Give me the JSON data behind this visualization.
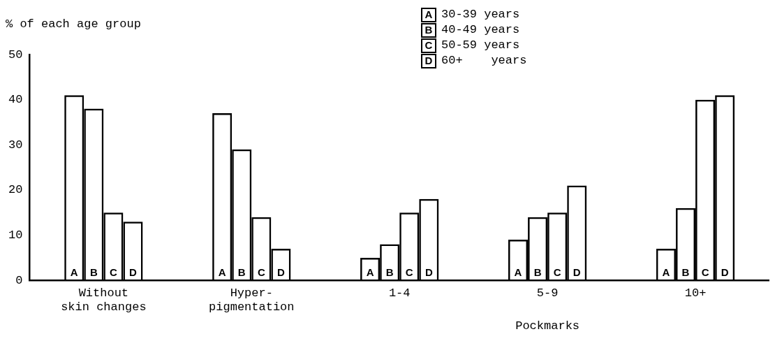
{
  "chart_data": {
    "type": "bar",
    "ylabel": "% of each age group",
    "xlabel": "Pockmarks",
    "categories": [
      "Without\nskin changes",
      "Hyper-\npigmentation",
      "1-4",
      "5-9",
      "10+"
    ],
    "series": [
      {
        "name": "30-39 years",
        "color": "#000000",
        "values": [
          41,
          37,
          5,
          9,
          7
        ],
        "value_labels": [
          "A",
          "A",
          "A",
          "A",
          "A"
        ]
      },
      {
        "name": "40-49 years",
        "color": "#000000",
        "values": [
          38,
          29,
          8,
          14,
          16
        ],
        "value_labels": [
          "B",
          "B",
          "B",
          "B",
          "B"
        ]
      },
      {
        "name": "50-59 years",
        "color": "#000000",
        "values": [
          15,
          14,
          15,
          15,
          40
        ],
        "value_labels": [
          "C",
          "C",
          "C",
          "C",
          "C"
        ]
      },
      {
        "name": "60+    years",
        "color": "#000000",
        "values": [
          13,
          7,
          18,
          21,
          41
        ],
        "value_labels": [
          "D",
          "D",
          "D",
          "D",
          "D"
        ]
      }
    ],
    "ylim": [
      0,
      50
    ],
    "yticks": [
      0,
      10,
      20,
      30,
      40,
      50
    ],
    "grid": false,
    "legend": "top right"
  }
}
